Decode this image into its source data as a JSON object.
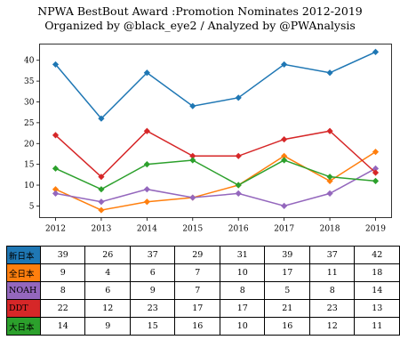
{
  "title": "NPWA BestBout Award :Promotion Nominates 2012-2019",
  "subtitle": "Organized by @black_eye2 / Analyzed by @PWAnalysis",
  "chart_data": {
    "type": "line",
    "title": "NPWA BestBout Award :Promotion Nominates 2012-2019",
    "subtitle": "Organized by @black_eye2 / Analyzed by @PWAnalysis",
    "x": [
      2012,
      2013,
      2014,
      2015,
      2016,
      2017,
      2018,
      2019
    ],
    "x_tick_labels": [
      "2012",
      "2013",
      "2014",
      "2015",
      "2016",
      "2017",
      "2018",
      "2019"
    ],
    "y_ticks": [
      5,
      10,
      15,
      20,
      25,
      30,
      35,
      40
    ],
    "y_tick_labels": [
      "5",
      "10",
      "15",
      "20",
      "25",
      "30",
      "35",
      "40"
    ],
    "ylim": [
      2.2,
      43.9
    ],
    "grid": false,
    "marker": "diamond",
    "series": [
      {
        "name": "新日本",
        "color": "#1f77b4",
        "values": [
          39,
          26,
          37,
          29,
          31,
          39,
          37,
          42
        ]
      },
      {
        "name": "全日本",
        "color": "#ff7f0e",
        "values": [
          9,
          4,
          6,
          7,
          10,
          17,
          11,
          18
        ]
      },
      {
        "name": "NOAH",
        "color": "#9467bd",
        "values": [
          8,
          6,
          9,
          7,
          8,
          5,
          8,
          14
        ]
      },
      {
        "name": "DDT",
        "color": "#d62728",
        "values": [
          22,
          12,
          23,
          17,
          17,
          21,
          23,
          13
        ]
      },
      {
        "name": "大日本",
        "color": "#2ca02c",
        "values": [
          14,
          9,
          15,
          16,
          10,
          16,
          12,
          11
        ]
      }
    ]
  }
}
